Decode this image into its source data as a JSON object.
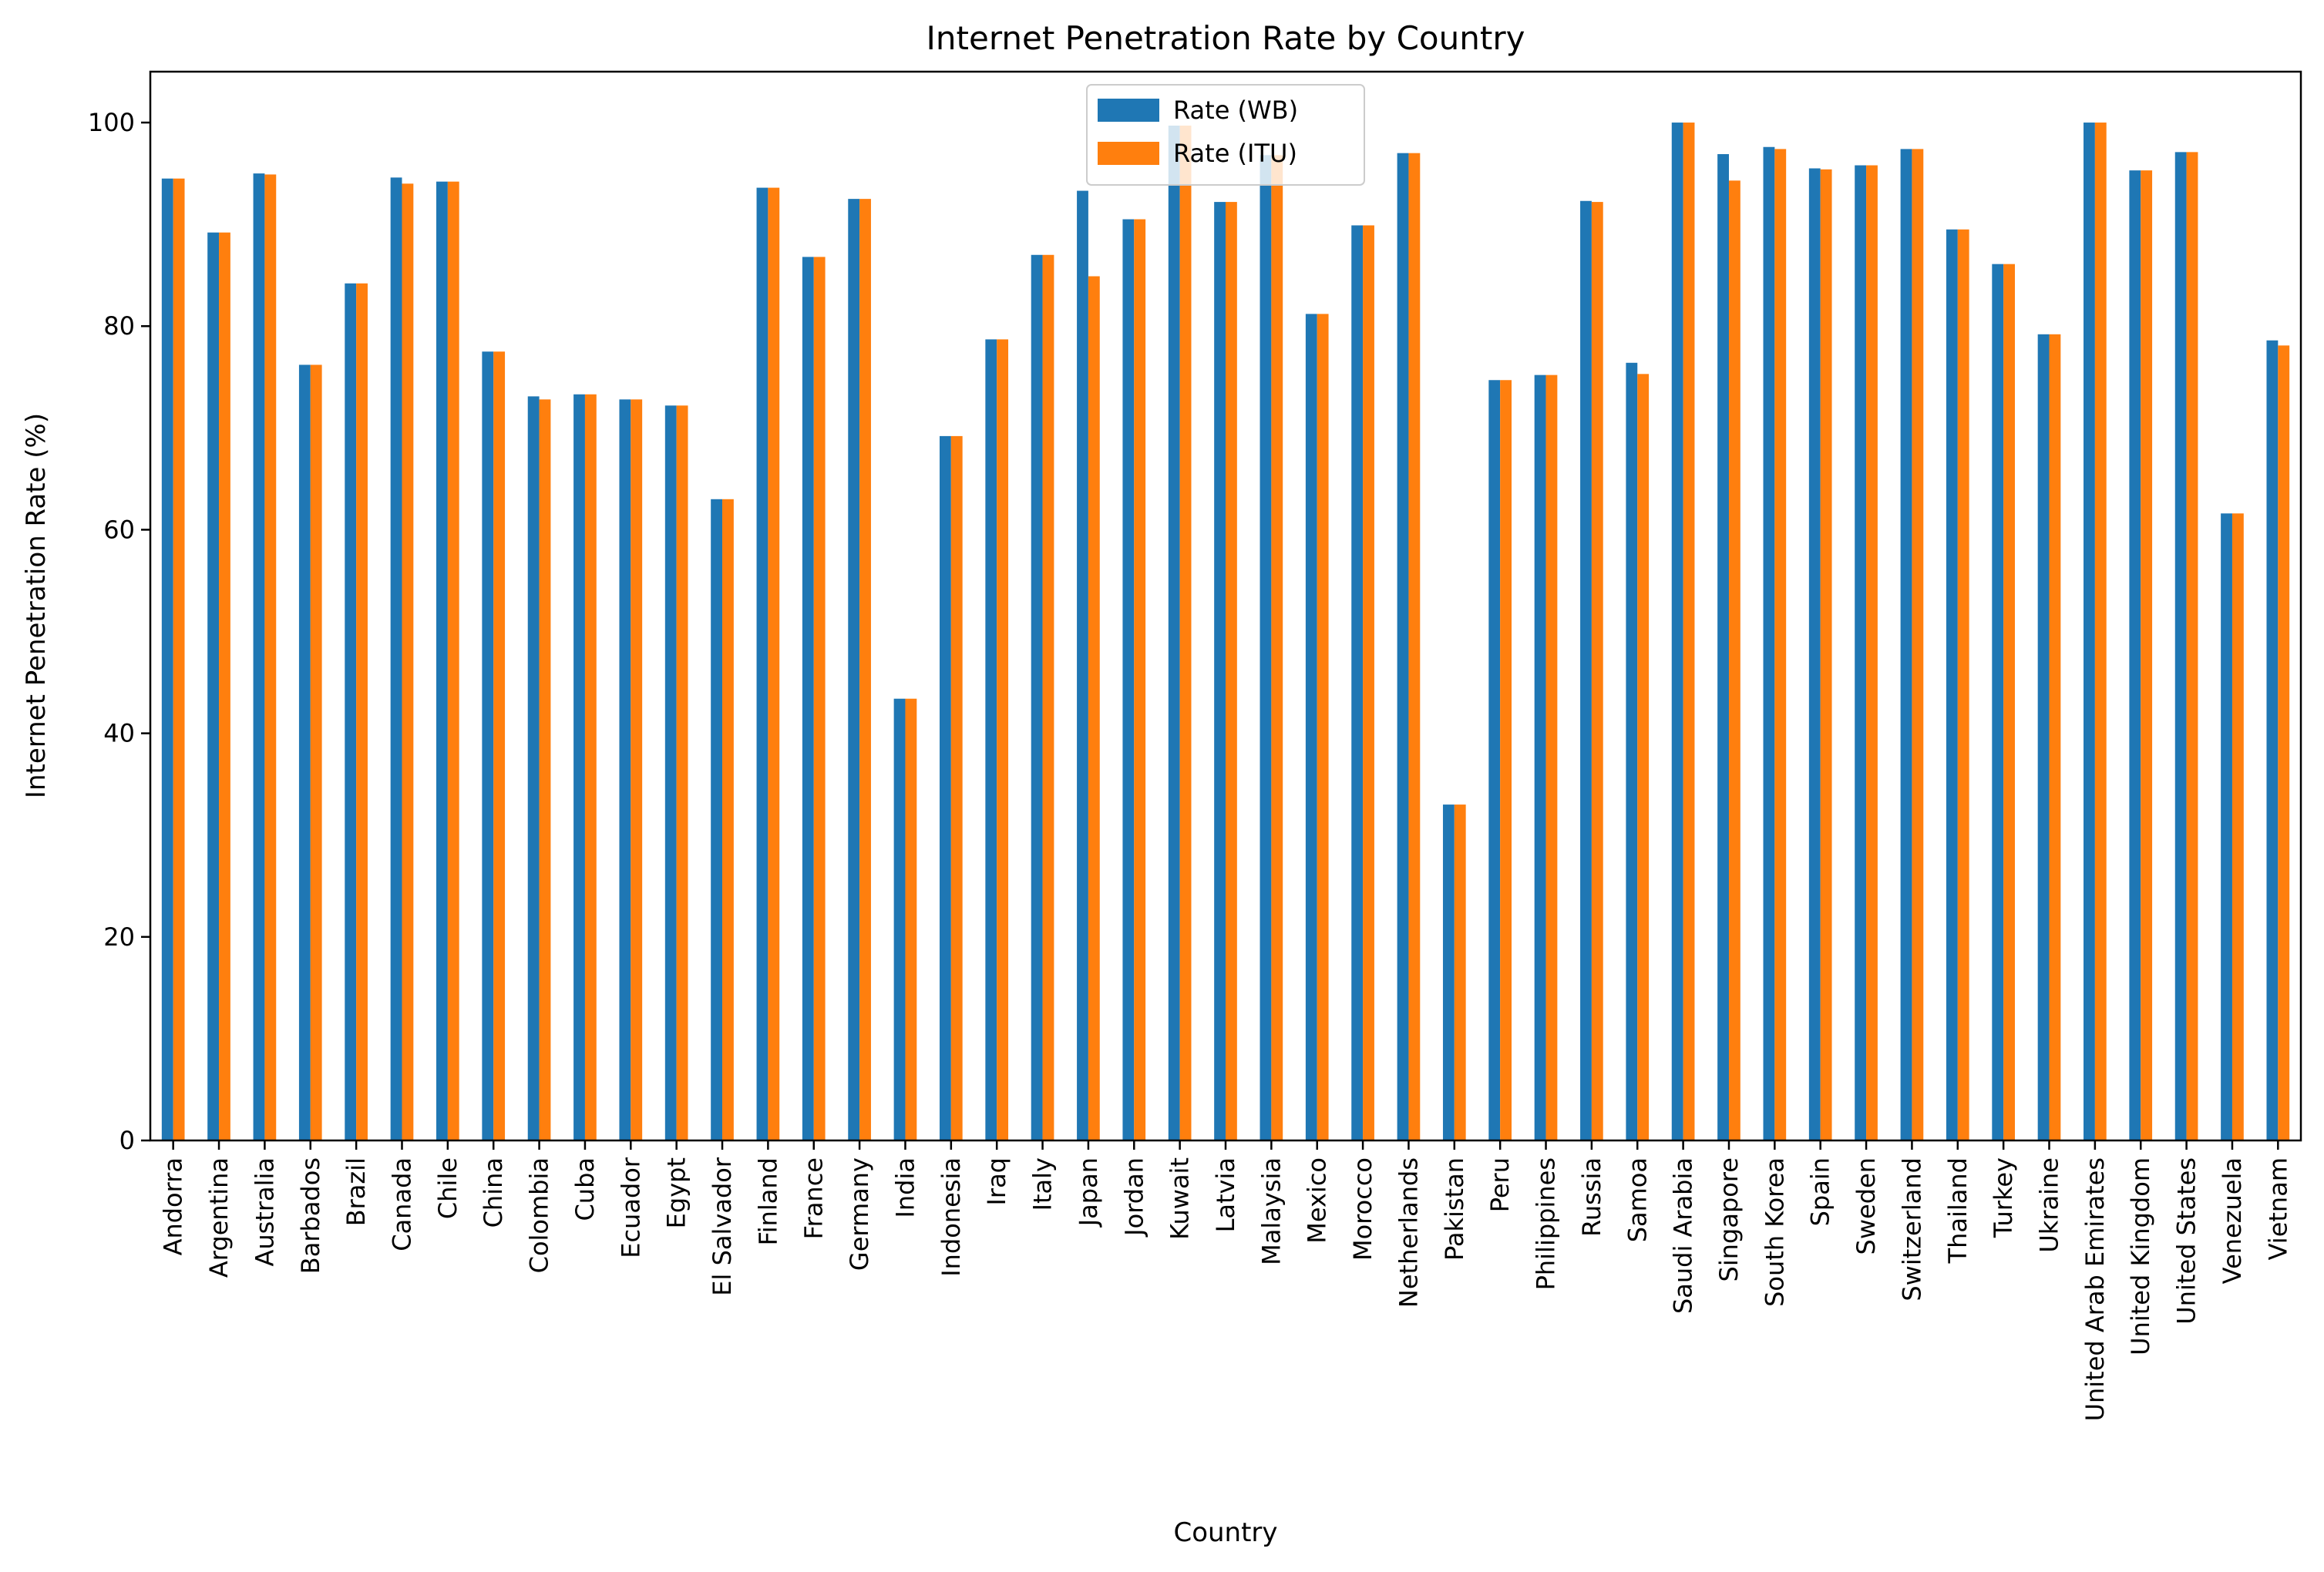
{
  "chart_data": {
    "type": "bar",
    "title": "Internet Penetration Rate by Country",
    "xlabel": "Country",
    "ylabel": "Internet Penetration Rate (%)",
    "ylim": [
      0,
      105
    ],
    "yticks": [
      0,
      20,
      40,
      60,
      80,
      100
    ],
    "grid": false,
    "legend_position": "top-center",
    "categories": [
      "Andorra",
      "Argentina",
      "Australia",
      "Barbados",
      "Brazil",
      "Canada",
      "Chile",
      "China",
      "Colombia",
      "Cuba",
      "Ecuador",
      "Egypt",
      "El Salvador",
      "Finland",
      "France",
      "Germany",
      "India",
      "Indonesia",
      "Iraq",
      "Italy",
      "Japan",
      "Jordan",
      "Kuwait",
      "Latvia",
      "Malaysia",
      "Mexico",
      "Morocco",
      "Netherlands",
      "Pakistan",
      "Peru",
      "Philippines",
      "Russia",
      "Samoa",
      "Saudi Arabia",
      "Singapore",
      "South Korea",
      "Spain",
      "Sweden",
      "Switzerland",
      "Thailand",
      "Turkey",
      "Ukraine",
      "United Arab Emirates",
      "United Kingdom",
      "United States",
      "Venezuela",
      "Vietnam"
    ],
    "series": [
      {
        "name": "Rate (WB)",
        "color": "#1f77b4",
        "values": [
          94.5,
          89.2,
          95.0,
          76.2,
          84.2,
          94.6,
          94.2,
          77.5,
          73.1,
          73.3,
          72.8,
          72.2,
          63.0,
          93.6,
          86.8,
          92.5,
          43.4,
          69.2,
          78.7,
          87.0,
          93.3,
          90.5,
          99.7,
          92.2,
          96.8,
          81.2,
          89.9,
          97.0,
          33.0,
          74.7,
          75.2,
          92.3,
          76.4,
          100.0,
          96.9,
          97.6,
          95.5,
          95.8,
          97.4,
          89.5,
          86.1,
          79.2,
          100.0,
          95.3,
          97.1,
          61.6,
          78.6
        ]
      },
      {
        "name": "Rate (ITU)",
        "color": "#ff7f0e",
        "values": [
          94.5,
          89.2,
          94.9,
          76.2,
          84.2,
          94.0,
          94.2,
          77.5,
          72.8,
          73.3,
          72.8,
          72.2,
          63.0,
          93.6,
          86.8,
          92.5,
          43.4,
          69.2,
          78.7,
          87.0,
          84.9,
          90.5,
          99.7,
          92.2,
          96.8,
          81.2,
          89.9,
          97.0,
          33.0,
          74.7,
          75.2,
          92.2,
          75.3,
          100.0,
          94.3,
          97.4,
          95.4,
          95.8,
          97.4,
          89.5,
          86.1,
          79.2,
          100.0,
          95.3,
          97.1,
          61.6,
          78.1
        ]
      }
    ]
  }
}
